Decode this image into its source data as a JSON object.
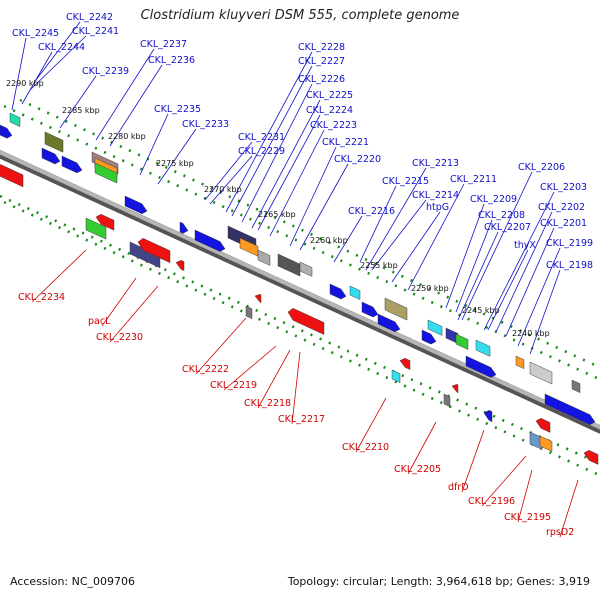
{
  "title": "Clostridium kluyveri DSM 555, complete genome",
  "accession": "Accession: NC_009706",
  "summary": "Topology: circular; Length: 3,964,618 bp; Genes: 3,919",
  "colors": {
    "forward_label": "#1010c8",
    "reverse_label": "#d00000",
    "backbone": "#8a8a8a",
    "tick_dots": "#1a8a1a",
    "gene_blue": "#1414e0",
    "gene_red": "#ee1111"
  },
  "scale_labels": [
    "2290 kbp",
    "2285 kbp",
    "2280 kbp",
    "2275 kbp",
    "2270 kbp",
    "2265 kbp",
    "2260 kbp",
    "2255 kbp",
    "2250 kbp",
    "2245 kbp",
    "2240 kbp"
  ],
  "forward_genes": [
    "CKL_2242",
    "CKL_2245",
    "CKL_2241",
    "CKL_2244",
    "CKL_2239",
    "CKL_2237",
    "CKL_2236",
    "CKL_2235",
    "CKL_2233",
    "CKL_2231",
    "CKL_2228",
    "CKL_2227",
    "CKL_2226",
    "CKL_2225",
    "CKL_2224",
    "CKL_2223",
    "CKL_2229",
    "CKL_2221",
    "CKL_2220",
    "CKL_2213",
    "CKL_2215",
    "CKL_2214",
    "CKL_2211",
    "htpG",
    "CKL_2216",
    "CKL_2206",
    "CKL_2203",
    "CKL_2209",
    "CKL_2208",
    "CKL_2202",
    "CKL_2201",
    "CKL_2207",
    "thyX",
    "CKL_2199",
    "CKL_2198"
  ],
  "reverse_genes": [
    "CKL_2234",
    "pacL",
    "CKL_2230",
    "CKL_2222",
    "CKL_2219",
    "CKL_2218",
    "CKL_2217",
    "CKL_2210",
    "CKL_2205",
    "dfrD",
    "CKL_2196",
    "CKL_2195",
    "rpsD2"
  ]
}
